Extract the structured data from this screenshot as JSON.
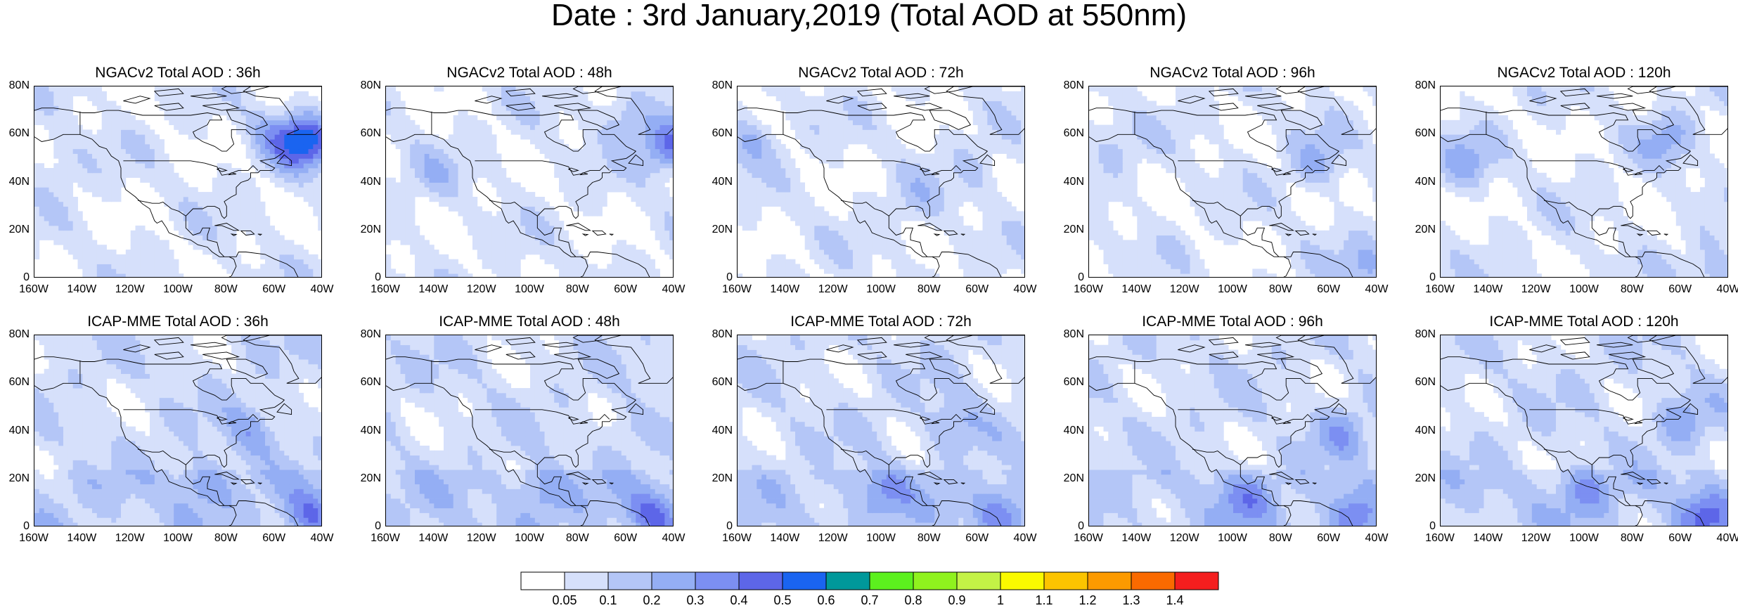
{
  "title": "Date : 3rd January,2019 (Total AOD at 550nm)",
  "panels": [
    {
      "title": "NGACv2 Total AOD : 36h",
      "model": "NGACv2",
      "lead": "36h"
    },
    {
      "title": "NGACv2 Total AOD : 48h",
      "model": "NGACv2",
      "lead": "48h"
    },
    {
      "title": "NGACv2 Total AOD : 72h",
      "model": "NGACv2",
      "lead": "72h"
    },
    {
      "title": "NGACv2 Total AOD : 96h",
      "model": "NGACv2",
      "lead": "96h"
    },
    {
      "title": "NGACv2 Total AOD : 120h",
      "model": "NGACv2",
      "lead": "120h"
    },
    {
      "title": "ICAP-MME Total AOD : 36h",
      "model": "ICAP-MME",
      "lead": "36h"
    },
    {
      "title": "ICAP-MME Total AOD : 48h",
      "model": "ICAP-MME",
      "lead": "48h"
    },
    {
      "title": "ICAP-MME Total AOD : 72h",
      "model": "ICAP-MME",
      "lead": "72h"
    },
    {
      "title": "ICAP-MME Total AOD : 96h",
      "model": "ICAP-MME",
      "lead": "96h"
    },
    {
      "title": "ICAP-MME Total AOD : 120h",
      "model": "ICAP-MME",
      "lead": "120h"
    }
  ],
  "lat_ticks": [
    "0",
    "20N",
    "40N",
    "60N",
    "80N"
  ],
  "lon_ticks": [
    "160W",
    "140W",
    "120W",
    "100W",
    "80W",
    "60W",
    "40W"
  ],
  "extent": {
    "lon": [
      -160,
      -40
    ],
    "lat": [
      0,
      80
    ]
  },
  "colorbar": {
    "labels": [
      "0.05",
      "0.1",
      "0.2",
      "0.3",
      "0.4",
      "0.5",
      "0.6",
      "0.7",
      "0.8",
      "0.9",
      "1",
      "1.1",
      "1.2",
      "1.3",
      "1.4"
    ],
    "colors": [
      "#ffffff",
      "#d6e0fb",
      "#b4c6f7",
      "#94aef4",
      "#7c8ff2",
      "#5d66e8",
      "#1a64f0",
      "#00989a",
      "#5cf01e",
      "#8ff21e",
      "#c3f246",
      "#fafa00",
      "#fcc400",
      "#fc9a00",
      "#fa6a00",
      "#f41e1e"
    ]
  },
  "fields": [
    {
      "hot": [
        {
          "lon": -47,
          "lat": 57,
          "v": 6
        },
        {
          "lon": -150,
          "lat": 50,
          "v": 2
        },
        {
          "lon": -60,
          "lat": 60,
          "v": 3
        }
      ]
    },
    {
      "hot": [
        {
          "lon": -42,
          "lat": 55,
          "v": 5
        },
        {
          "lon": -140,
          "lat": 45,
          "v": 2
        },
        {
          "lon": -60,
          "lat": 68,
          "v": 3
        }
      ]
    },
    {
      "hot": [
        {
          "lon": -155,
          "lat": 58,
          "v": 3
        },
        {
          "lon": -85,
          "lat": 32,
          "v": 2
        },
        {
          "lon": -60,
          "lat": 45,
          "v": 2
        }
      ]
    },
    {
      "hot": [
        {
          "lon": -65,
          "lat": 48,
          "v": 3
        },
        {
          "lon": -150,
          "lat": 55,
          "v": 2
        },
        {
          "lon": -45,
          "lat": 5,
          "v": 3
        }
      ]
    },
    {
      "hot": [
        {
          "lon": -150,
          "lat": 48,
          "v": 3
        },
        {
          "lon": -65,
          "lat": 58,
          "v": 3
        },
        {
          "lon": -45,
          "lat": 3,
          "v": 3
        }
      ]
    },
    {
      "hot": [
        {
          "lon": -45,
          "lat": 5,
          "v": 4
        },
        {
          "lon": -90,
          "lat": 18,
          "v": 3
        },
        {
          "lon": -70,
          "lat": 40,
          "v": 3
        }
      ]
    },
    {
      "hot": [
        {
          "lon": -48,
          "lat": 6,
          "v": 4
        },
        {
          "lon": -95,
          "lat": 15,
          "v": 3
        },
        {
          "lon": -60,
          "lat": 40,
          "v": 2
        }
      ]
    },
    {
      "hot": [
        {
          "lon": -50,
          "lat": 6,
          "v": 4
        },
        {
          "lon": -100,
          "lat": 15,
          "v": 3
        },
        {
          "lon": -70,
          "lat": 42,
          "v": 3
        }
      ]
    },
    {
      "hot": [
        {
          "lon": -50,
          "lat": 5,
          "v": 4
        },
        {
          "lon": -95,
          "lat": 12,
          "v": 3
        },
        {
          "lon": -55,
          "lat": 40,
          "v": 3
        }
      ]
    },
    {
      "hot": [
        {
          "lon": -50,
          "lat": 5,
          "v": 4
        },
        {
          "lon": -100,
          "lat": 15,
          "v": 3
        },
        {
          "lon": -60,
          "lat": 45,
          "v": 3
        }
      ]
    }
  ]
}
